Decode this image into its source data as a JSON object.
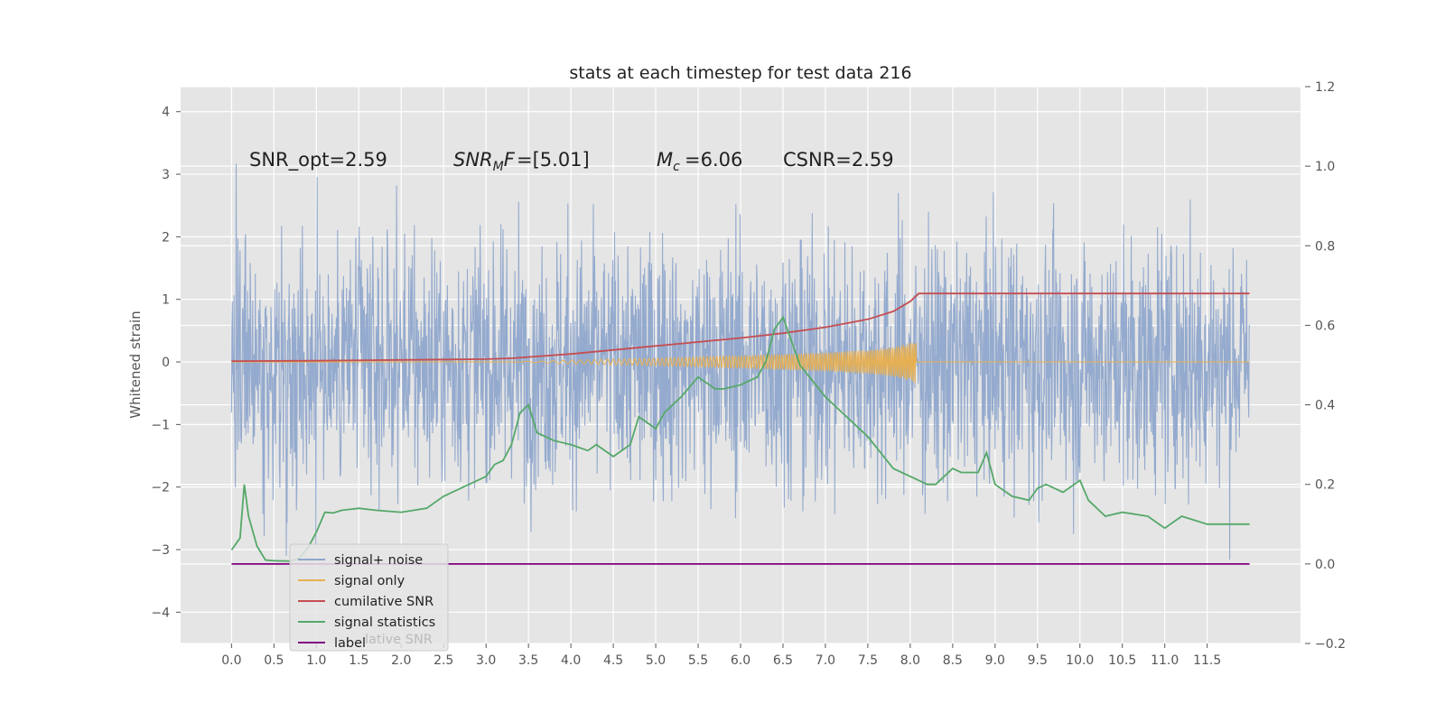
{
  "chart_data": {
    "type": "line",
    "title": "stats at each timestep for test data 216",
    "ylabel": "Whitened strain",
    "xlim": [
      -0.6,
      12.6
    ],
    "ylim": [
      -4.5,
      4.4
    ],
    "y2lim": [
      -0.2,
      1.2
    ],
    "x_ticks": [
      "0.0",
      "0.5",
      "1.0",
      "1.5",
      "2.0",
      "2.5",
      "3.0",
      "3.5",
      "4.0",
      "4.5",
      "5.0",
      "5.5",
      "6.0",
      "6.5",
      "7.0",
      "7.5",
      "8.0",
      "8.5",
      "9.0",
      "9.5",
      "10.0",
      "10.5",
      "11.0",
      "11.5"
    ],
    "y_ticks": [
      "4",
      "3",
      "2",
      "1",
      "0",
      "−1",
      "−2",
      "−3",
      "−4"
    ],
    "y2_ticks": [
      "1.2",
      "1.0",
      "0.8",
      "0.6",
      "0.4",
      "0.2",
      "0.0",
      "−0.2"
    ],
    "grid": true,
    "legend_position": "lower-left",
    "annotations": {
      "snr_opt": "SNR_opt=2.59",
      "snr_mf": "=[5.01]",
      "mc": "=6.06",
      "csnr": "CSNR=2.59"
    },
    "series": [
      {
        "name": "signal+ noise",
        "color": "#8fa6cc",
        "axis": "left",
        "description": "whitened noisy strain, roughly Gaussian with std ~1 over t in [0, 12]"
      },
      {
        "name": "signal only",
        "color": "#e8b050",
        "axis": "left",
        "description": "chirp growing in amplitude up to ~0.35 and ending near t=8.07",
        "envelope": {
          "x": [
            3.3,
            4.0,
            5.0,
            6.0,
            7.0,
            7.5,
            7.8,
            8.0,
            8.07
          ],
          "y": [
            0.0,
            0.03,
            0.06,
            0.1,
            0.15,
            0.19,
            0.24,
            0.3,
            0.35
          ]
        }
      },
      {
        "name": "cumilative SNR",
        "color": "#c44e52",
        "axis": "right",
        "x": [
          0,
          1,
          2,
          3,
          3.3,
          4,
          5,
          6,
          6.5,
          7,
          7.5,
          7.8,
          8.0,
          8.1,
          12.0
        ],
        "y": [
          0.51,
          0.511,
          0.513,
          0.515,
          0.517,
          0.528,
          0.548,
          0.568,
          0.58,
          0.595,
          0.615,
          0.635,
          0.66,
          0.68,
          0.68
        ]
      },
      {
        "name": "signal statistics",
        "color": "#55a868",
        "axis": "right",
        "x": [
          0.0,
          0.1,
          0.15,
          0.2,
          0.3,
          0.4,
          0.5,
          0.7,
          0.8,
          0.9,
          1.0,
          1.1,
          1.2,
          1.3,
          1.5,
          1.7,
          2.0,
          2.3,
          2.5,
          2.8,
          3.0,
          3.1,
          3.2,
          3.3,
          3.4,
          3.5,
          3.6,
          3.7,
          3.8,
          4.0,
          4.2,
          4.3,
          4.5,
          4.7,
          4.8,
          5.0,
          5.1,
          5.3,
          5.5,
          5.7,
          5.8,
          6.0,
          6.2,
          6.3,
          6.4,
          6.5,
          6.6,
          6.7,
          7.0,
          7.2,
          7.3,
          7.5,
          7.8,
          8.0,
          8.2,
          8.3,
          8.5,
          8.6,
          8.8,
          8.9,
          9.0,
          9.2,
          9.4,
          9.5,
          9.6,
          9.8,
          10.0,
          10.1,
          10.3,
          10.5,
          10.8,
          11.0,
          11.2,
          11.5,
          11.9,
          12.0
        ],
        "y": [
          0.035,
          0.065,
          0.2,
          0.12,
          0.045,
          0.01,
          0.008,
          0.007,
          0.015,
          0.04,
          0.08,
          0.13,
          0.128,
          0.135,
          0.14,
          0.135,
          0.13,
          0.14,
          0.17,
          0.2,
          0.22,
          0.25,
          0.26,
          0.3,
          0.38,
          0.4,
          0.33,
          0.32,
          0.31,
          0.3,
          0.285,
          0.3,
          0.27,
          0.3,
          0.37,
          0.34,
          0.38,
          0.42,
          0.47,
          0.44,
          0.44,
          0.45,
          0.47,
          0.51,
          0.59,
          0.62,
          0.56,
          0.5,
          0.42,
          0.38,
          0.36,
          0.32,
          0.24,
          0.22,
          0.2,
          0.2,
          0.24,
          0.23,
          0.23,
          0.28,
          0.2,
          0.17,
          0.16,
          0.19,
          0.2,
          0.18,
          0.21,
          0.16,
          0.12,
          0.13,
          0.12,
          0.09,
          0.12,
          0.1,
          0.1,
          0.1
        ]
      },
      {
        "name": "label",
        "color": "#800080",
        "axis": "right",
        "x": [
          0,
          12.0
        ],
        "y": [
          0.0,
          0.0
        ]
      }
    ],
    "legend_hidden_text": "lative SNR"
  }
}
